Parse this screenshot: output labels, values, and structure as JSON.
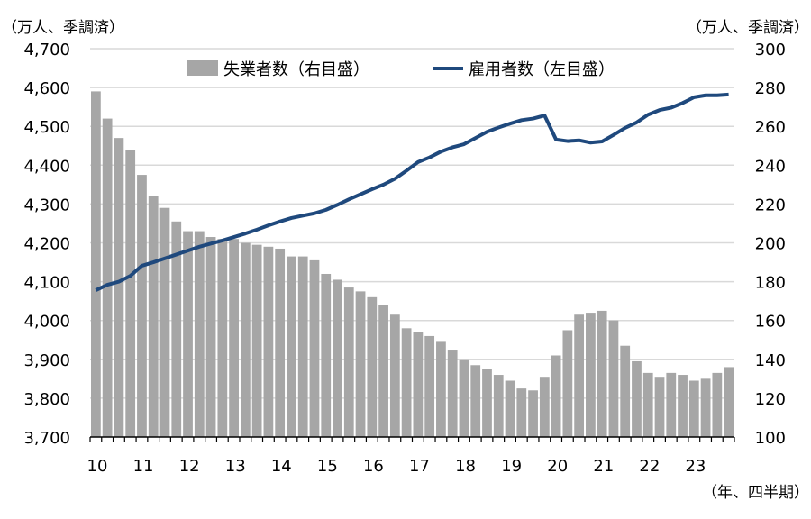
{
  "chart_data": {
    "type": "bar+line",
    "left_unit_label": "（万人、季調済）",
    "right_unit_label": "（万人、季調済）",
    "x_unit_label": "（年、四半期）",
    "left_axis": {
      "range": [
        3700,
        4700
      ],
      "ticks": [
        "3,700",
        "3,800",
        "3,900",
        "4,000",
        "4,100",
        "4,200",
        "4,300",
        "4,400",
        "4,500",
        "4,600",
        "4,700"
      ]
    },
    "right_axis": {
      "range": [
        100,
        300
      ],
      "ticks": [
        "100",
        "120",
        "140",
        "160",
        "180",
        "200",
        "220",
        "240",
        "260",
        "280",
        "300"
      ]
    },
    "x_ticks": [
      "10",
      "11",
      "12",
      "13",
      "14",
      "15",
      "16",
      "17",
      "18",
      "19",
      "20",
      "21",
      "22",
      "23"
    ],
    "grid": true,
    "legend_position": "top",
    "colors": {
      "bar": "#a6a6a6",
      "line": "#1f497d",
      "grid": "#d9d9d9"
    },
    "series": [
      {
        "name": "失業者数（右目盛）",
        "type": "bar",
        "axis": "right",
        "values": [
          278,
          264,
          254,
          248,
          235,
          224,
          218,
          211,
          206,
          206,
          203,
          202,
          202,
          200,
          199,
          198,
          197,
          193,
          193,
          191,
          184,
          181,
          177,
          175,
          172,
          168,
          163,
          156,
          154,
          152,
          149,
          145,
          140,
          137,
          135,
          132,
          129,
          125,
          124,
          131,
          142,
          155,
          163,
          164,
          165,
          160,
          147,
          139,
          133,
          131,
          133,
          132,
          129,
          130,
          133,
          136
        ]
      },
      {
        "name": "雇用者数（左目盛）",
        "type": "line",
        "axis": "left",
        "values": [
          4078,
          4092,
          4100,
          4115,
          4141,
          4150,
          4160,
          4170,
          4180,
          4190,
          4198,
          4206,
          4215,
          4224,
          4234,
          4245,
          4255,
          4264,
          4270,
          4276,
          4285,
          4298,
          4312,
          4325,
          4338,
          4350,
          4365,
          4386,
          4408,
          4420,
          4435,
          4446,
          4454,
          4470,
          4486,
          4497,
          4507,
          4516,
          4520,
          4528,
          4466,
          4462,
          4464,
          4458,
          4461,
          4478,
          4496,
          4510,
          4530,
          4542,
          4548,
          4560,
          4575,
          4580,
          4580,
          4582
        ]
      }
    ]
  }
}
